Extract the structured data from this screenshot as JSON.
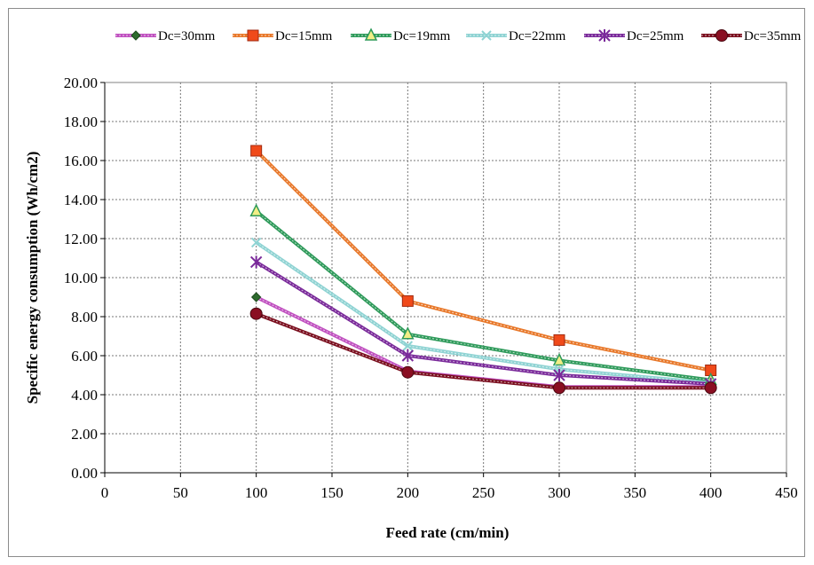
{
  "chart_data": {
    "type": "line",
    "title": "",
    "xlabel": "Feed rate (cm/min)",
    "ylabel": "Specific energy consumption (Wh/cm2)",
    "xlim": [
      0,
      450
    ],
    "ylim": [
      0,
      20
    ],
    "x_ticks": [
      "0",
      "50",
      "100",
      "150",
      "200",
      "250",
      "300",
      "350",
      "400",
      "450"
    ],
    "y_ticks": [
      "0.00",
      "2.00",
      "4.00",
      "6.00",
      "8.00",
      "10.00",
      "12.00",
      "14.00",
      "16.00",
      "18.00",
      "20.00"
    ],
    "grid": true,
    "legend_position": "top",
    "x": [
      100,
      200,
      300,
      400
    ],
    "series": [
      {
        "name": "Dc=30mm",
        "values": [
          9.0,
          5.2,
          4.4,
          4.4
        ],
        "color": "#c050c0",
        "marker": "diamond"
      },
      {
        "name": "Dc=15mm",
        "values": [
          16.5,
          8.8,
          6.8,
          5.25
        ],
        "color": "#e8782a",
        "marker": "square"
      },
      {
        "name": "Dc=19mm",
        "values": [
          13.4,
          7.1,
          5.75,
          4.75
        ],
        "color": "#2e9a5a",
        "marker": "triangle"
      },
      {
        "name": "Dc=22mm",
        "values": [
          11.8,
          6.5,
          5.3,
          4.6
        ],
        "color": "#8fd3d3",
        "marker": "x"
      },
      {
        "name": "Dc=25mm",
        "values": [
          10.8,
          6.0,
          5.0,
          4.55
        ],
        "color": "#7a2a9a",
        "marker": "star"
      },
      {
        "name": "Dc=35mm",
        "values": [
          8.15,
          5.15,
          4.35,
          4.35
        ],
        "color": "#7a0e1e",
        "marker": "circle"
      }
    ]
  }
}
